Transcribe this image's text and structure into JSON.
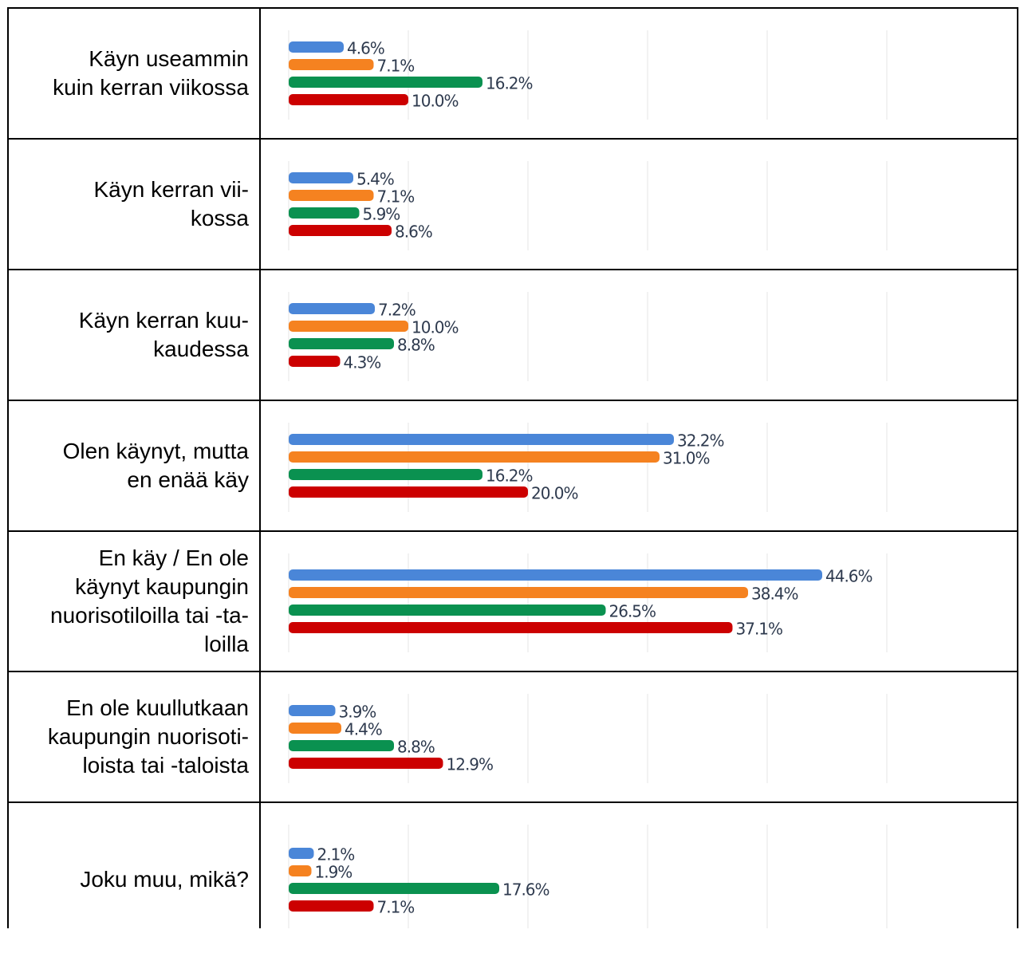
{
  "chart_data": {
    "type": "bar",
    "orientation": "horizontal",
    "categories": [
      "Käyn useammin\nkuin kerran viikossa",
      "Käyn kerran vii-\nkossa",
      "Käyn kerran kuu-\nkaudessa",
      "Olen käynyt, mutta\nen enää käy",
      "En käy / En ole\nkäynyt kaupungin\nnuorisotiloilla tai -ta-\nloilla",
      "En ole kuullutkaan\nkaupungin nuorisoti-\nloista tai -taloista",
      "Joku muu, mikä?"
    ],
    "series": [
      {
        "color": "#4a86d8",
        "values": [
          4.6,
          5.4,
          7.2,
          32.2,
          44.6,
          3.9,
          2.1
        ],
        "value_labels": [
          "4.6%",
          "5.4%",
          "7.2%",
          "32.2%",
          "44.6%",
          "3.9%",
          "2.1%"
        ]
      },
      {
        "color": "#f58220",
        "values": [
          7.1,
          7.1,
          10.0,
          31.0,
          38.4,
          4.4,
          1.9
        ],
        "value_labels": [
          "7.1%",
          "7.1%",
          "10.0%",
          "31.0%",
          "38.4%",
          "4.4%",
          "1.9%"
        ]
      },
      {
        "color": "#0a9150",
        "values": [
          16.2,
          5.9,
          8.8,
          16.2,
          26.5,
          8.8,
          17.6
        ],
        "value_labels": [
          "16.2%",
          "5.9%",
          "8.8%",
          "16.2%",
          "26.5%",
          "8.8%",
          "17.6%"
        ]
      },
      {
        "color": "#cc0000",
        "values": [
          10.0,
          8.6,
          4.3,
          20.0,
          37.1,
          12.9,
          7.1
        ],
        "value_labels": [
          "10.0%",
          "8.6%",
          "4.3%",
          "20.0%",
          "37.1%",
          "12.9%",
          "7.1%"
        ]
      }
    ],
    "xlim": [
      0,
      50
    ],
    "xticks": [
      0,
      10,
      20,
      30,
      40,
      50
    ],
    "grid": true
  }
}
